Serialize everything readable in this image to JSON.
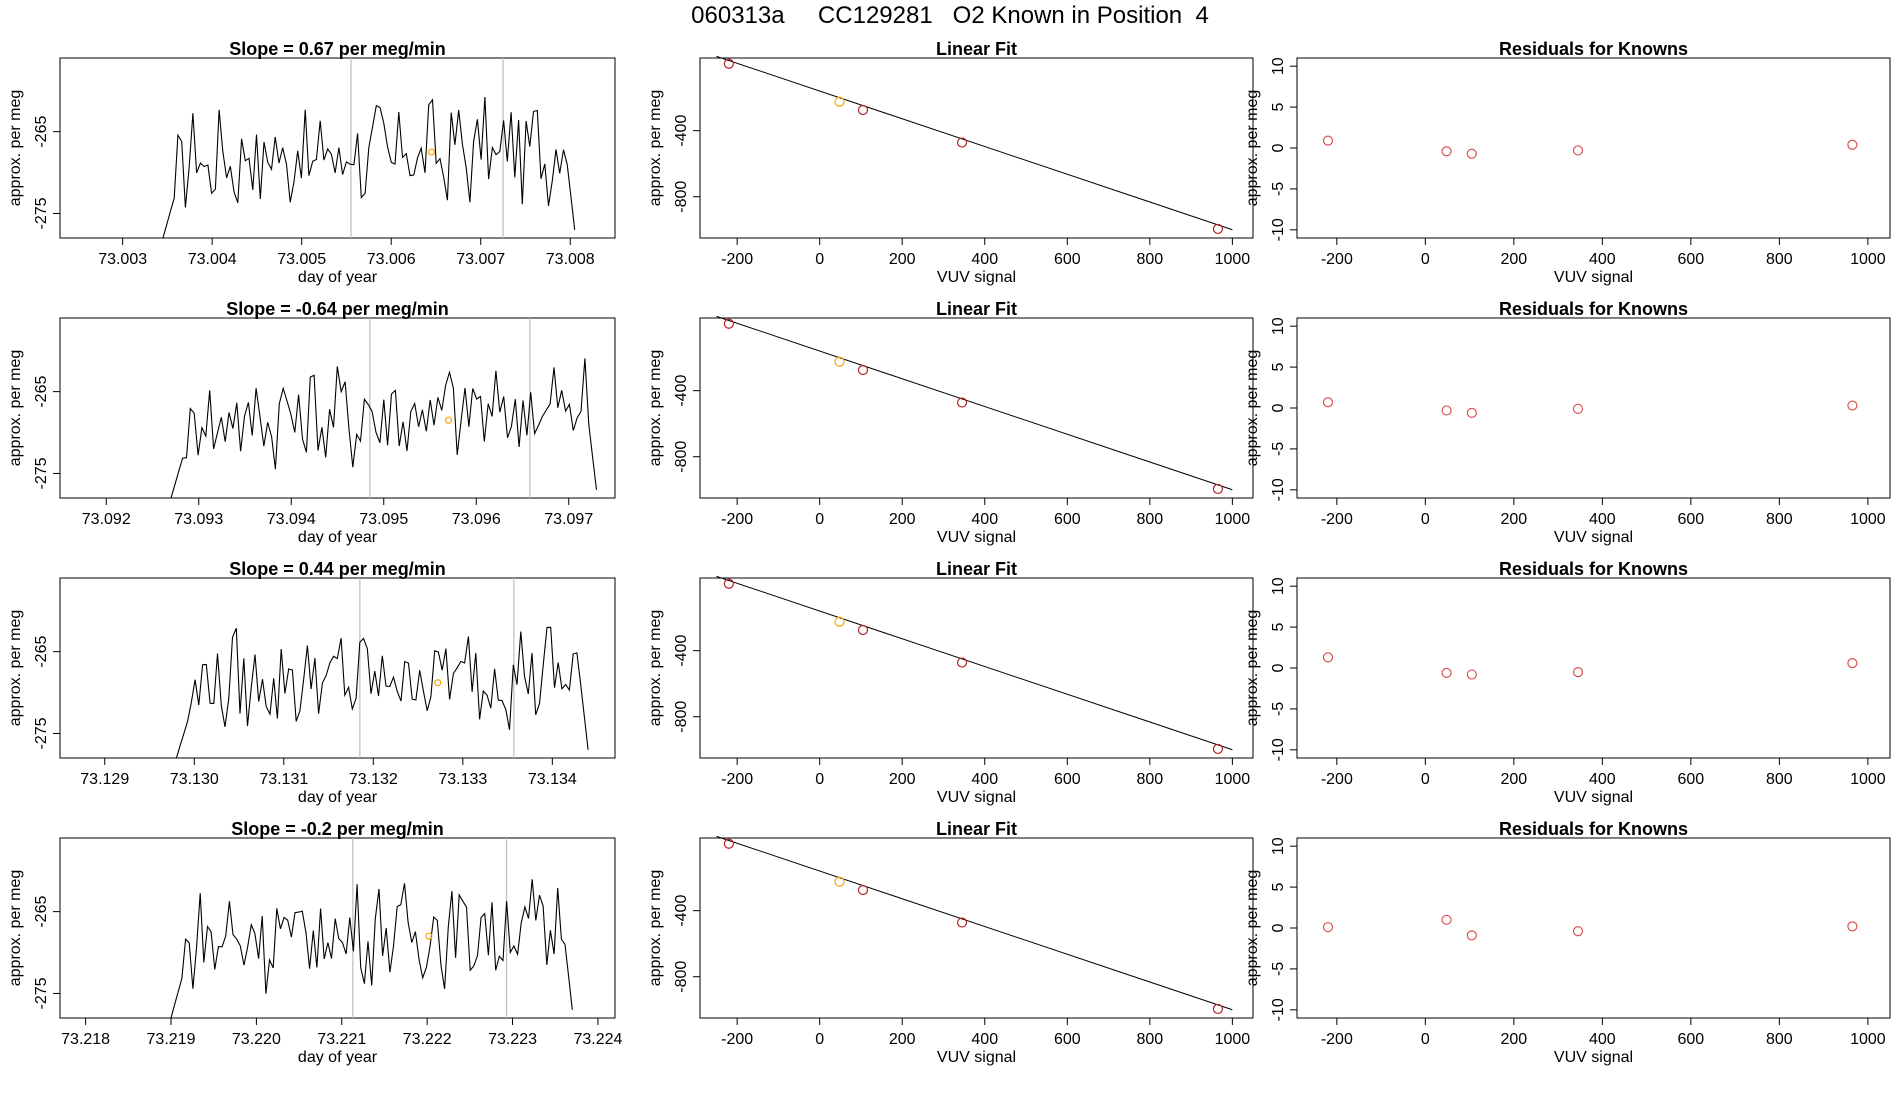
{
  "header": {
    "title": "060313a     CC129281   O2 Known in Position  4"
  },
  "colors": {
    "trace": "#000000",
    "highlight": "#ffa500",
    "marker_fit": "#b22222",
    "marker_resid": "#d9534f",
    "vline": "#bdbdbd"
  },
  "chart_data": [
    {
      "type": "line",
      "title": "Slope =  0.67  per meg/min",
      "xlabel": "day of year",
      "ylabel": "approx. per meg",
      "xlim": [
        73.0023,
        73.0085
      ],
      "ylim": [
        -278,
        -256
      ],
      "x_ticks": [
        73.003,
        73.004,
        73.005,
        73.006,
        73.007,
        73.008
      ],
      "x_tick_labels": [
        "73.003",
        "73.004",
        "73.005",
        "73.006",
        "73.007",
        "73.008"
      ],
      "y_ticks": [
        -265,
        -275
      ],
      "y_tick_labels": [
        "-265",
        "-275"
      ],
      "vlines": [
        73.00555,
        73.00725
      ],
      "series_start": 73.00345,
      "series_end": 73.00805,
      "series_baseline": -268.5,
      "highlight_point": {
        "x": 73.00645,
        "y": -267.5
      }
    },
    {
      "type": "line",
      "title": "Slope =  -0.64  per meg/min",
      "xlabel": "day of year",
      "ylabel": "approx. per meg",
      "xlim": [
        73.0915,
        73.0975
      ],
      "ylim": [
        -278,
        -256
      ],
      "x_ticks": [
        73.092,
        73.093,
        73.094,
        73.095,
        73.096,
        73.097
      ],
      "x_tick_labels": [
        "73.092",
        "73.093",
        "73.094",
        "73.095",
        "73.096",
        "73.097"
      ],
      "y_ticks": [
        -265,
        -275
      ],
      "y_tick_labels": [
        "-265",
        "-275"
      ],
      "vlines": [
        73.09485,
        73.09658
      ],
      "series_start": 73.0927,
      "series_end": 73.0973,
      "series_baseline": -268.5,
      "highlight_point": {
        "x": 73.0957,
        "y": -268.5
      }
    },
    {
      "type": "line",
      "title": "Slope =  0.44  per meg/min",
      "xlabel": "day of year",
      "ylabel": "approx. per meg",
      "xlim": [
        73.1285,
        73.1347
      ],
      "ylim": [
        -278,
        -256
      ],
      "x_ticks": [
        73.129,
        73.13,
        73.131,
        73.132,
        73.133,
        73.134
      ],
      "x_tick_labels": [
        "73.129",
        "73.130",
        "73.131",
        "73.132",
        "73.133",
        "73.134"
      ],
      "y_ticks": [
        -265,
        -275
      ],
      "y_tick_labels": [
        "-265",
        "-275"
      ],
      "vlines": [
        73.13185,
        73.13357
      ],
      "series_start": 73.1298,
      "series_end": 73.1344,
      "series_baseline": -269,
      "highlight_point": {
        "x": 73.13272,
        "y": -268.8
      }
    },
    {
      "type": "line",
      "title": "Slope =  -0.2  per meg/min",
      "xlabel": "day of year",
      "ylabel": "approx. per meg",
      "xlim": [
        73.2177,
        73.2242
      ],
      "ylim": [
        -278,
        -256
      ],
      "x_ticks": [
        73.218,
        73.219,
        73.22,
        73.221,
        73.222,
        73.223,
        73.224
      ],
      "x_tick_labels": [
        "73.218",
        "73.219",
        "73.220",
        "73.221",
        "73.222",
        "73.223",
        "73.224"
      ],
      "y_ticks": [
        -265,
        -275
      ],
      "y_tick_labels": [
        "-265",
        "-275"
      ],
      "vlines": [
        73.22113,
        73.22293
      ],
      "series_start": 73.219,
      "series_end": 73.2237,
      "series_baseline": -268.5,
      "highlight_point": {
        "x": 73.22202,
        "y": -268
      }
    },
    {
      "type": "scatter",
      "title": "Linear Fit",
      "xlabel": "VUV signal",
      "ylabel": "approx. per meg",
      "xlim": [
        -290,
        1050
      ],
      "ylim": [
        -1050,
        40
      ],
      "x_ticks": [
        -200,
        0,
        200,
        400,
        600,
        800,
        1000
      ],
      "x_tick_labels": [
        "-200",
        "0",
        "200",
        "400",
        "600",
        "800",
        "1000"
      ],
      "y_ticks": [
        -400,
        -800
      ],
      "y_tick_labels": [
        "-400",
        "-800"
      ],
      "fit_line": {
        "x0": -250,
        "y0": 50,
        "x1": 1000,
        "y1": -1000
      },
      "points": [
        {
          "x": -220,
          "y": 5,
          "highlight": false
        },
        {
          "x": 48,
          "y": -225,
          "highlight": true
        },
        {
          "x": 105,
          "y": -275,
          "highlight": false
        },
        {
          "x": 345,
          "y": -472,
          "highlight": false
        },
        {
          "x": 965,
          "y": -995,
          "highlight": false
        }
      ]
    },
    {
      "type": "scatter",
      "title": "Linear Fit",
      "xlabel": "VUV signal",
      "ylabel": "approx. per meg",
      "xlim": [
        -290,
        1050
      ],
      "ylim": [
        -1050,
        40
      ],
      "x_ticks": [
        -200,
        0,
        200,
        400,
        600,
        800,
        1000
      ],
      "x_tick_labels": [
        "-200",
        "0",
        "200",
        "400",
        "600",
        "800",
        "1000"
      ],
      "y_ticks": [
        -400,
        -800
      ],
      "y_tick_labels": [
        "-400",
        "-800"
      ],
      "fit_line": {
        "x0": -250,
        "y0": 50,
        "x1": 1000,
        "y1": -1000
      },
      "points": [
        {
          "x": -220,
          "y": 5,
          "highlight": false
        },
        {
          "x": 48,
          "y": -225,
          "highlight": true
        },
        {
          "x": 105,
          "y": -275,
          "highlight": false
        },
        {
          "x": 345,
          "y": -472,
          "highlight": false
        },
        {
          "x": 965,
          "y": -995,
          "highlight": false
        }
      ]
    },
    {
      "type": "scatter",
      "title": "Linear Fit",
      "xlabel": "VUV signal",
      "ylabel": "approx. per meg",
      "xlim": [
        -290,
        1050
      ],
      "ylim": [
        -1050,
        40
      ],
      "x_ticks": [
        -200,
        0,
        200,
        400,
        600,
        800,
        1000
      ],
      "x_tick_labels": [
        "-200",
        "0",
        "200",
        "400",
        "600",
        "800",
        "1000"
      ],
      "y_ticks": [
        -400,
        -800
      ],
      "y_tick_labels": [
        "-400",
        "-800"
      ],
      "fit_line": {
        "x0": -250,
        "y0": 50,
        "x1": 1000,
        "y1": -1000
      },
      "points": [
        {
          "x": -220,
          "y": 5,
          "highlight": false
        },
        {
          "x": 48,
          "y": -225,
          "highlight": true
        },
        {
          "x": 105,
          "y": -275,
          "highlight": false
        },
        {
          "x": 345,
          "y": -472,
          "highlight": false
        },
        {
          "x": 965,
          "y": -995,
          "highlight": false
        }
      ]
    },
    {
      "type": "scatter",
      "title": "Linear Fit",
      "xlabel": "VUV signal",
      "ylabel": "approx. per meg",
      "xlim": [
        -290,
        1050
      ],
      "ylim": [
        -1050,
        40
      ],
      "x_ticks": [
        -200,
        0,
        200,
        400,
        600,
        800,
        1000
      ],
      "x_tick_labels": [
        "-200",
        "0",
        "200",
        "400",
        "600",
        "800",
        "1000"
      ],
      "y_ticks": [
        -400,
        -800
      ],
      "y_tick_labels": [
        "-400",
        "-800"
      ],
      "fit_line": {
        "x0": -250,
        "y0": 50,
        "x1": 1000,
        "y1": -1000
      },
      "points": [
        {
          "x": -220,
          "y": 5,
          "highlight": false
        },
        {
          "x": 48,
          "y": -225,
          "highlight": true
        },
        {
          "x": 105,
          "y": -275,
          "highlight": false
        },
        {
          "x": 345,
          "y": -472,
          "highlight": false
        },
        {
          "x": 965,
          "y": -995,
          "highlight": false
        }
      ]
    },
    {
      "type": "scatter",
      "title": "Residuals for Knowns",
      "xlabel": "VUV signal",
      "ylabel": "approx. per meg",
      "xlim": [
        -290,
        1050
      ],
      "ylim": [
        -11,
        11
      ],
      "x_ticks": [
        -200,
        0,
        200,
        400,
        600,
        800,
        1000
      ],
      "x_tick_labels": [
        "-200",
        "0",
        "200",
        "400",
        "600",
        "800",
        "1000"
      ],
      "y_ticks": [
        10,
        5,
        0,
        -5,
        -10
      ],
      "y_tick_labels": [
        "10",
        "5",
        "0",
        "-5",
        "-10"
      ],
      "points": [
        {
          "x": -220,
          "y": 0.9
        },
        {
          "x": 48,
          "y": -0.4
        },
        {
          "x": 105,
          "y": -0.7
        },
        {
          "x": 345,
          "y": -0.3
        },
        {
          "x": 965,
          "y": 0.4
        }
      ]
    },
    {
      "type": "scatter",
      "title": "Residuals for Knowns",
      "xlabel": "VUV signal",
      "ylabel": "approx. per meg",
      "xlim": [
        -290,
        1050
      ],
      "ylim": [
        -11,
        11
      ],
      "x_ticks": [
        -200,
        0,
        200,
        400,
        600,
        800,
        1000
      ],
      "x_tick_labels": [
        "-200",
        "0",
        "200",
        "400",
        "600",
        "800",
        "1000"
      ],
      "y_ticks": [
        10,
        5,
        0,
        -5,
        -10
      ],
      "y_tick_labels": [
        "10",
        "5",
        "0",
        "-5",
        "-10"
      ],
      "points": [
        {
          "x": -220,
          "y": 0.7
        },
        {
          "x": 48,
          "y": -0.3
        },
        {
          "x": 105,
          "y": -0.6
        },
        {
          "x": 345,
          "y": -0.1
        },
        {
          "x": 965,
          "y": 0.3
        }
      ]
    },
    {
      "type": "scatter",
      "title": "Residuals for Knowns",
      "xlabel": "VUV signal",
      "ylabel": "approx. per meg",
      "xlim": [
        -290,
        1050
      ],
      "ylim": [
        -11,
        11
      ],
      "x_ticks": [
        -200,
        0,
        200,
        400,
        600,
        800,
        1000
      ],
      "x_tick_labels": [
        "-200",
        "0",
        "200",
        "400",
        "600",
        "800",
        "1000"
      ],
      "y_ticks": [
        10,
        5,
        0,
        -5,
        -10
      ],
      "y_tick_labels": [
        "10",
        "5",
        "0",
        "-5",
        "-10"
      ],
      "points": [
        {
          "x": -220,
          "y": 1.3
        },
        {
          "x": 48,
          "y": -0.6
        },
        {
          "x": 105,
          "y": -0.8
        },
        {
          "x": 345,
          "y": -0.5
        },
        {
          "x": 965,
          "y": 0.6
        }
      ]
    },
    {
      "type": "scatter",
      "title": "Residuals for Knowns",
      "xlabel": "VUV signal",
      "ylabel": "approx. per meg",
      "xlim": [
        -290,
        1050
      ],
      "ylim": [
        -11,
        11
      ],
      "x_ticks": [
        -200,
        0,
        200,
        400,
        600,
        800,
        1000
      ],
      "x_tick_labels": [
        "-200",
        "0",
        "200",
        "400",
        "600",
        "800",
        "1000"
      ],
      "y_ticks": [
        10,
        5,
        0,
        -5,
        -10
      ],
      "y_tick_labels": [
        "10",
        "5",
        "0",
        "-5",
        "-10"
      ],
      "points": [
        {
          "x": -220,
          "y": 0.1
        },
        {
          "x": 48,
          "y": 1.0
        },
        {
          "x": 105,
          "y": -0.9
        },
        {
          "x": 345,
          "y": -0.4
        },
        {
          "x": 965,
          "y": 0.2
        }
      ]
    }
  ]
}
